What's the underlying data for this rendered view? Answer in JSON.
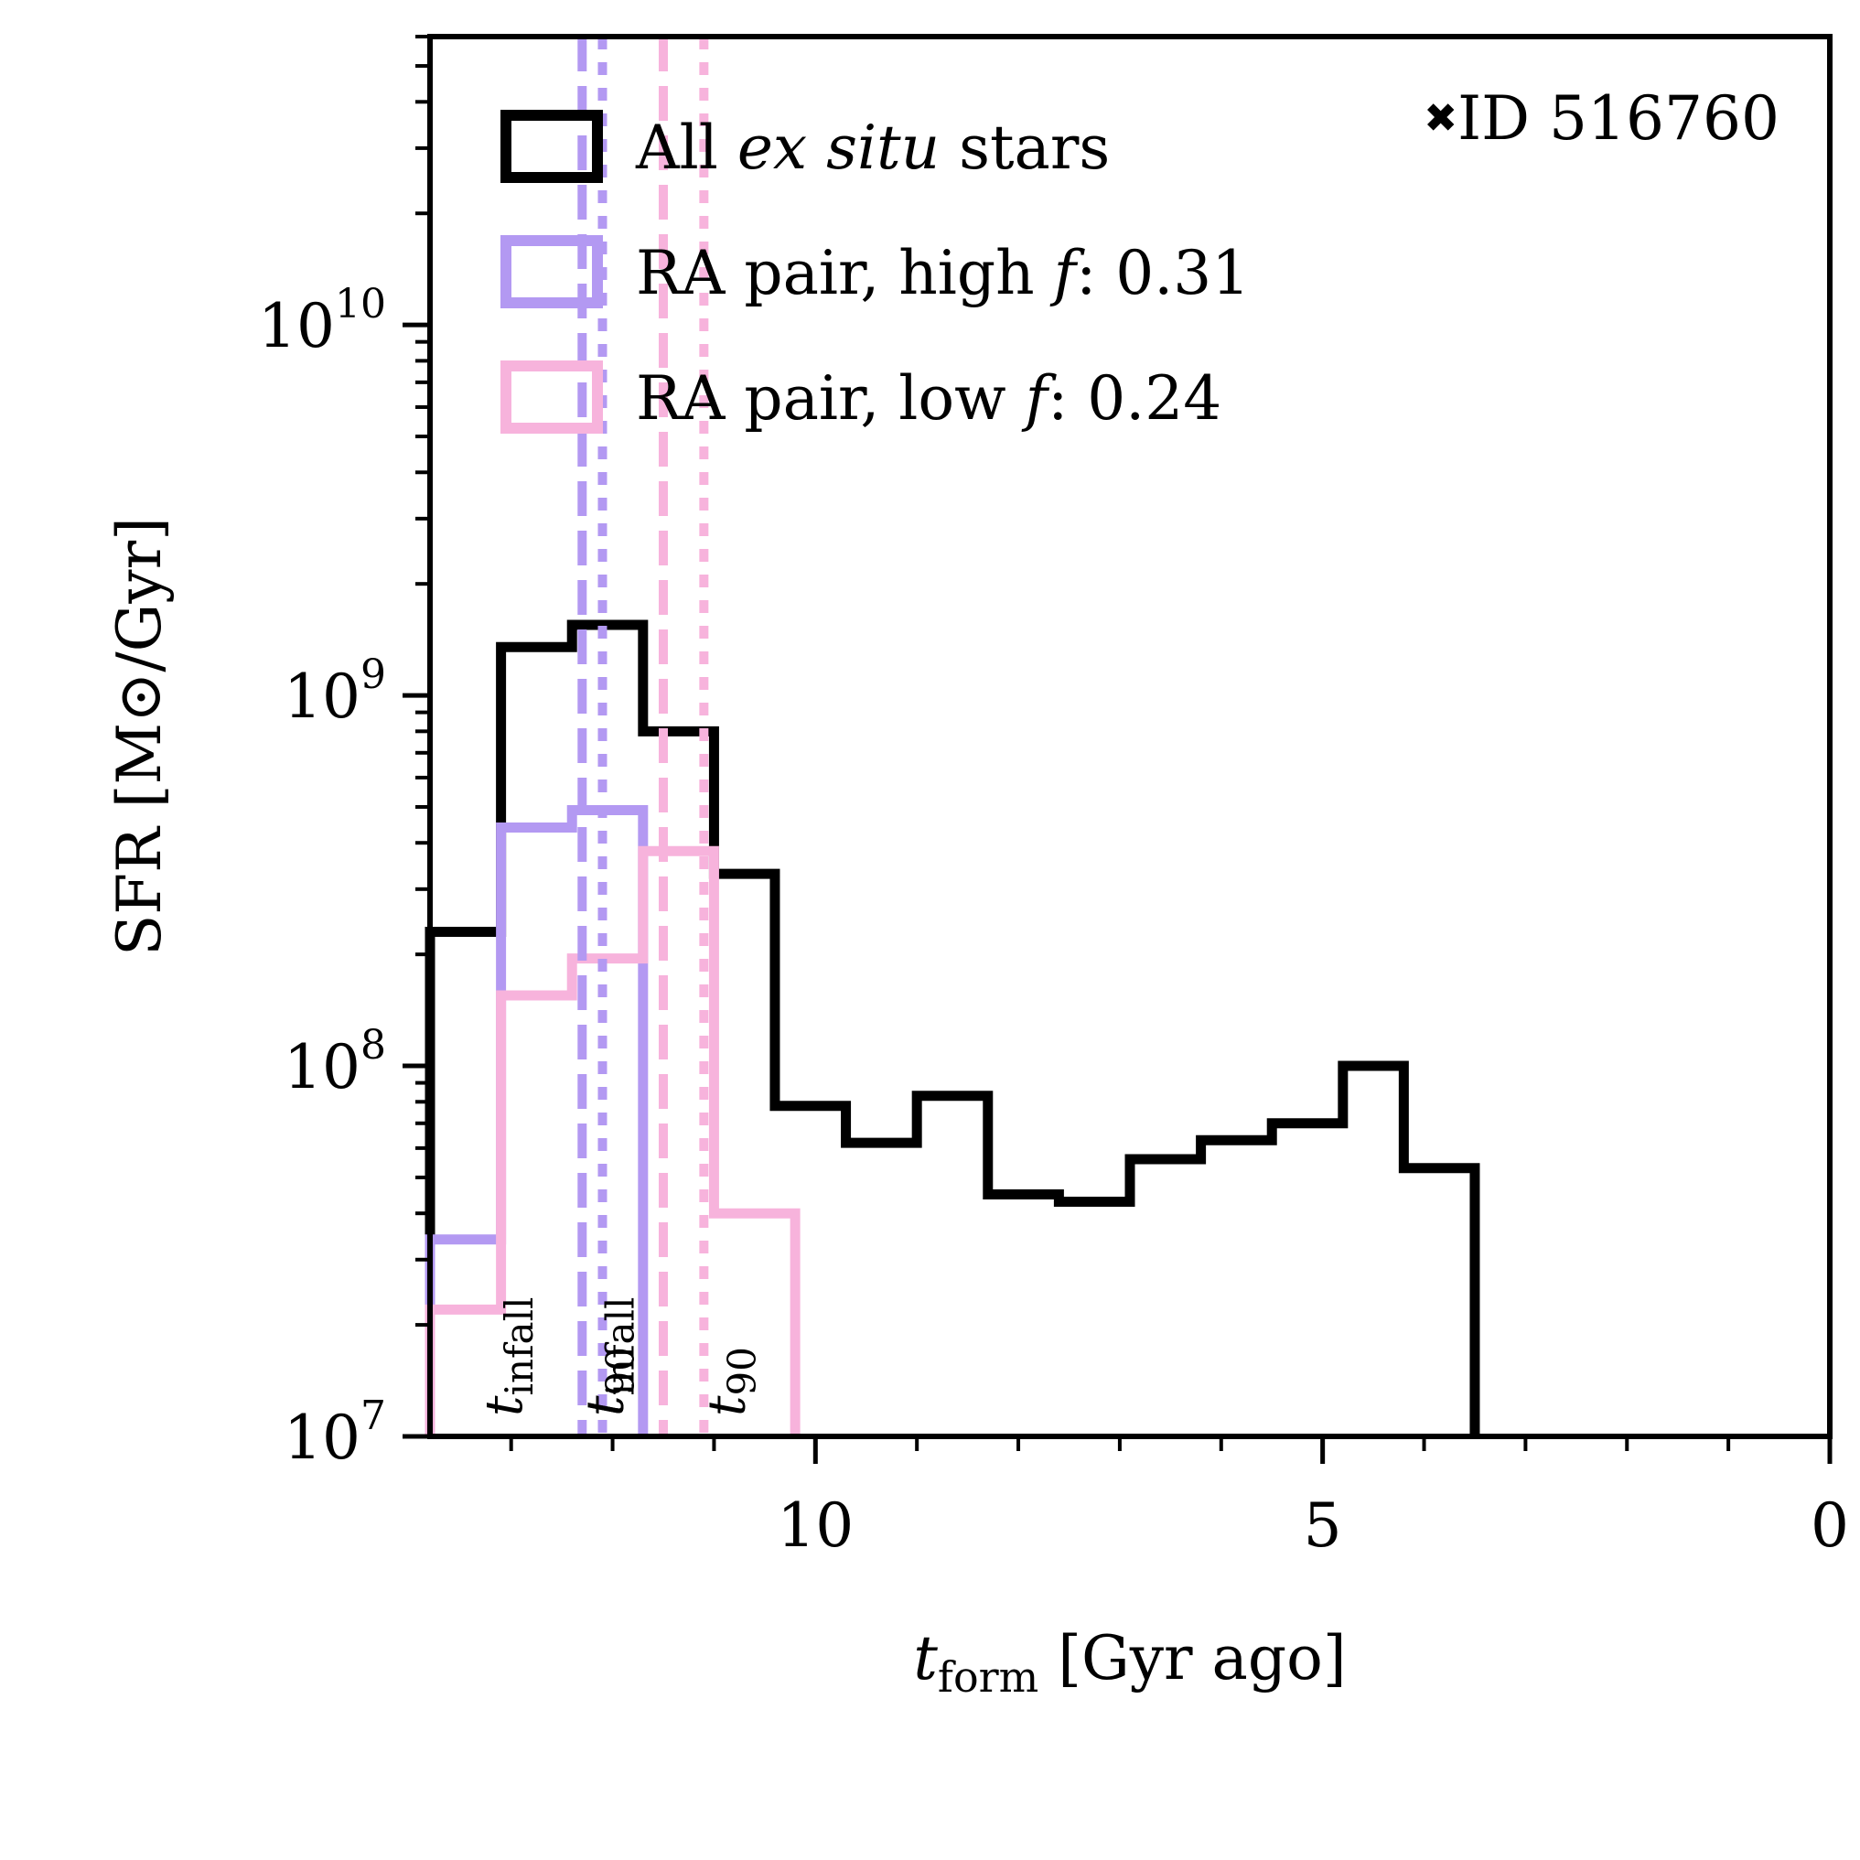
{
  "chart_data": {
    "type": "histogram-step",
    "title": "",
    "corner_label": {
      "marker": "✖",
      "text": "ID 516760"
    },
    "xlabel": {
      "main": "t",
      "sub": "form",
      "rest": " [Gyr ago]"
    },
    "ylabel": "SFR [M⊙/Gyr]",
    "xlim": [
      13.8,
      0
    ],
    "ylim": [
      10000000.0,
      60000000000.0
    ],
    "yscale": "log",
    "x_ticks": [
      {
        "value": 10,
        "label": "10"
      },
      {
        "value": 5,
        "label": "5"
      },
      {
        "value": 0,
        "label": "0"
      }
    ],
    "x_minor_step": 1,
    "y_ticks": [
      {
        "value": 10000000.0,
        "base": "10",
        "exp": "7"
      },
      {
        "value": 100000000.0,
        "base": "10",
        "exp": "8"
      },
      {
        "value": 1000000000.0,
        "base": "10",
        "exp": "9"
      },
      {
        "value": 10000000000.0,
        "base": "10",
        "exp": "10"
      }
    ],
    "colors": {
      "all": "#000000",
      "high": "#b399f2",
      "low": "#f7b3dc"
    },
    "series": [
      {
        "name": "all",
        "legend": {
          "pre": "All ",
          "ital": "ex situ",
          "post": " stars"
        },
        "color": "#000000",
        "edges": [
          13.8,
          13.1,
          12.4,
          11.7,
          11.0,
          10.4,
          9.7,
          9.0,
          8.3,
          7.6,
          6.9,
          6.2,
          5.5,
          4.8,
          4.2,
          3.5
        ],
        "values": [
          230000000.0,
          1350000000.0,
          1550000000.0,
          800000000.0,
          330000000.0,
          78000000.0,
          62000000.0,
          83000000.0,
          45000000.0,
          43000000.0,
          56000000.0,
          63000000.0,
          70000000.0,
          100000000.0,
          53000000.0
        ]
      },
      {
        "name": "high",
        "legend": {
          "pre": "RA pair, high ",
          "ital": "f",
          "post": ": 0.31"
        },
        "color": "#b399f2",
        "edges": [
          13.8,
          13.1,
          12.4,
          11.7
        ],
        "values": [
          34000000.0,
          440000000.0,
          490000000.0
        ]
      },
      {
        "name": "low",
        "legend": {
          "pre": "RA pair, low ",
          "ital": "f",
          "post": ": 0.24"
        },
        "color": "#f7b3dc",
        "edges": [
          13.8,
          13.1,
          12.4,
          11.7,
          11.0,
          10.2
        ],
        "values": [
          22000000.0,
          155000000.0,
          195000000.0,
          380000000.0,
          40000000.0
        ]
      }
    ],
    "vlines": [
      {
        "series": "high",
        "x": 12.3,
        "style": "dashed"
      },
      {
        "series": "high",
        "x": 12.1,
        "style": "dotted"
      },
      {
        "series": "low",
        "x": 11.5,
        "style": "dashed"
      },
      {
        "series": "low",
        "x": 11.1,
        "style": "dotted"
      }
    ],
    "annotations": [
      {
        "series": "high",
        "x": 12.9,
        "main": "t",
        "sub": "infall"
      },
      {
        "series": "high",
        "x": 11.9,
        "main": "t",
        "sub": "90"
      },
      {
        "series": "low",
        "x": 11.9,
        "main": "t",
        "sub": "infall"
      },
      {
        "series": "low",
        "x": 10.7,
        "main": "t",
        "sub": "90"
      }
    ]
  }
}
